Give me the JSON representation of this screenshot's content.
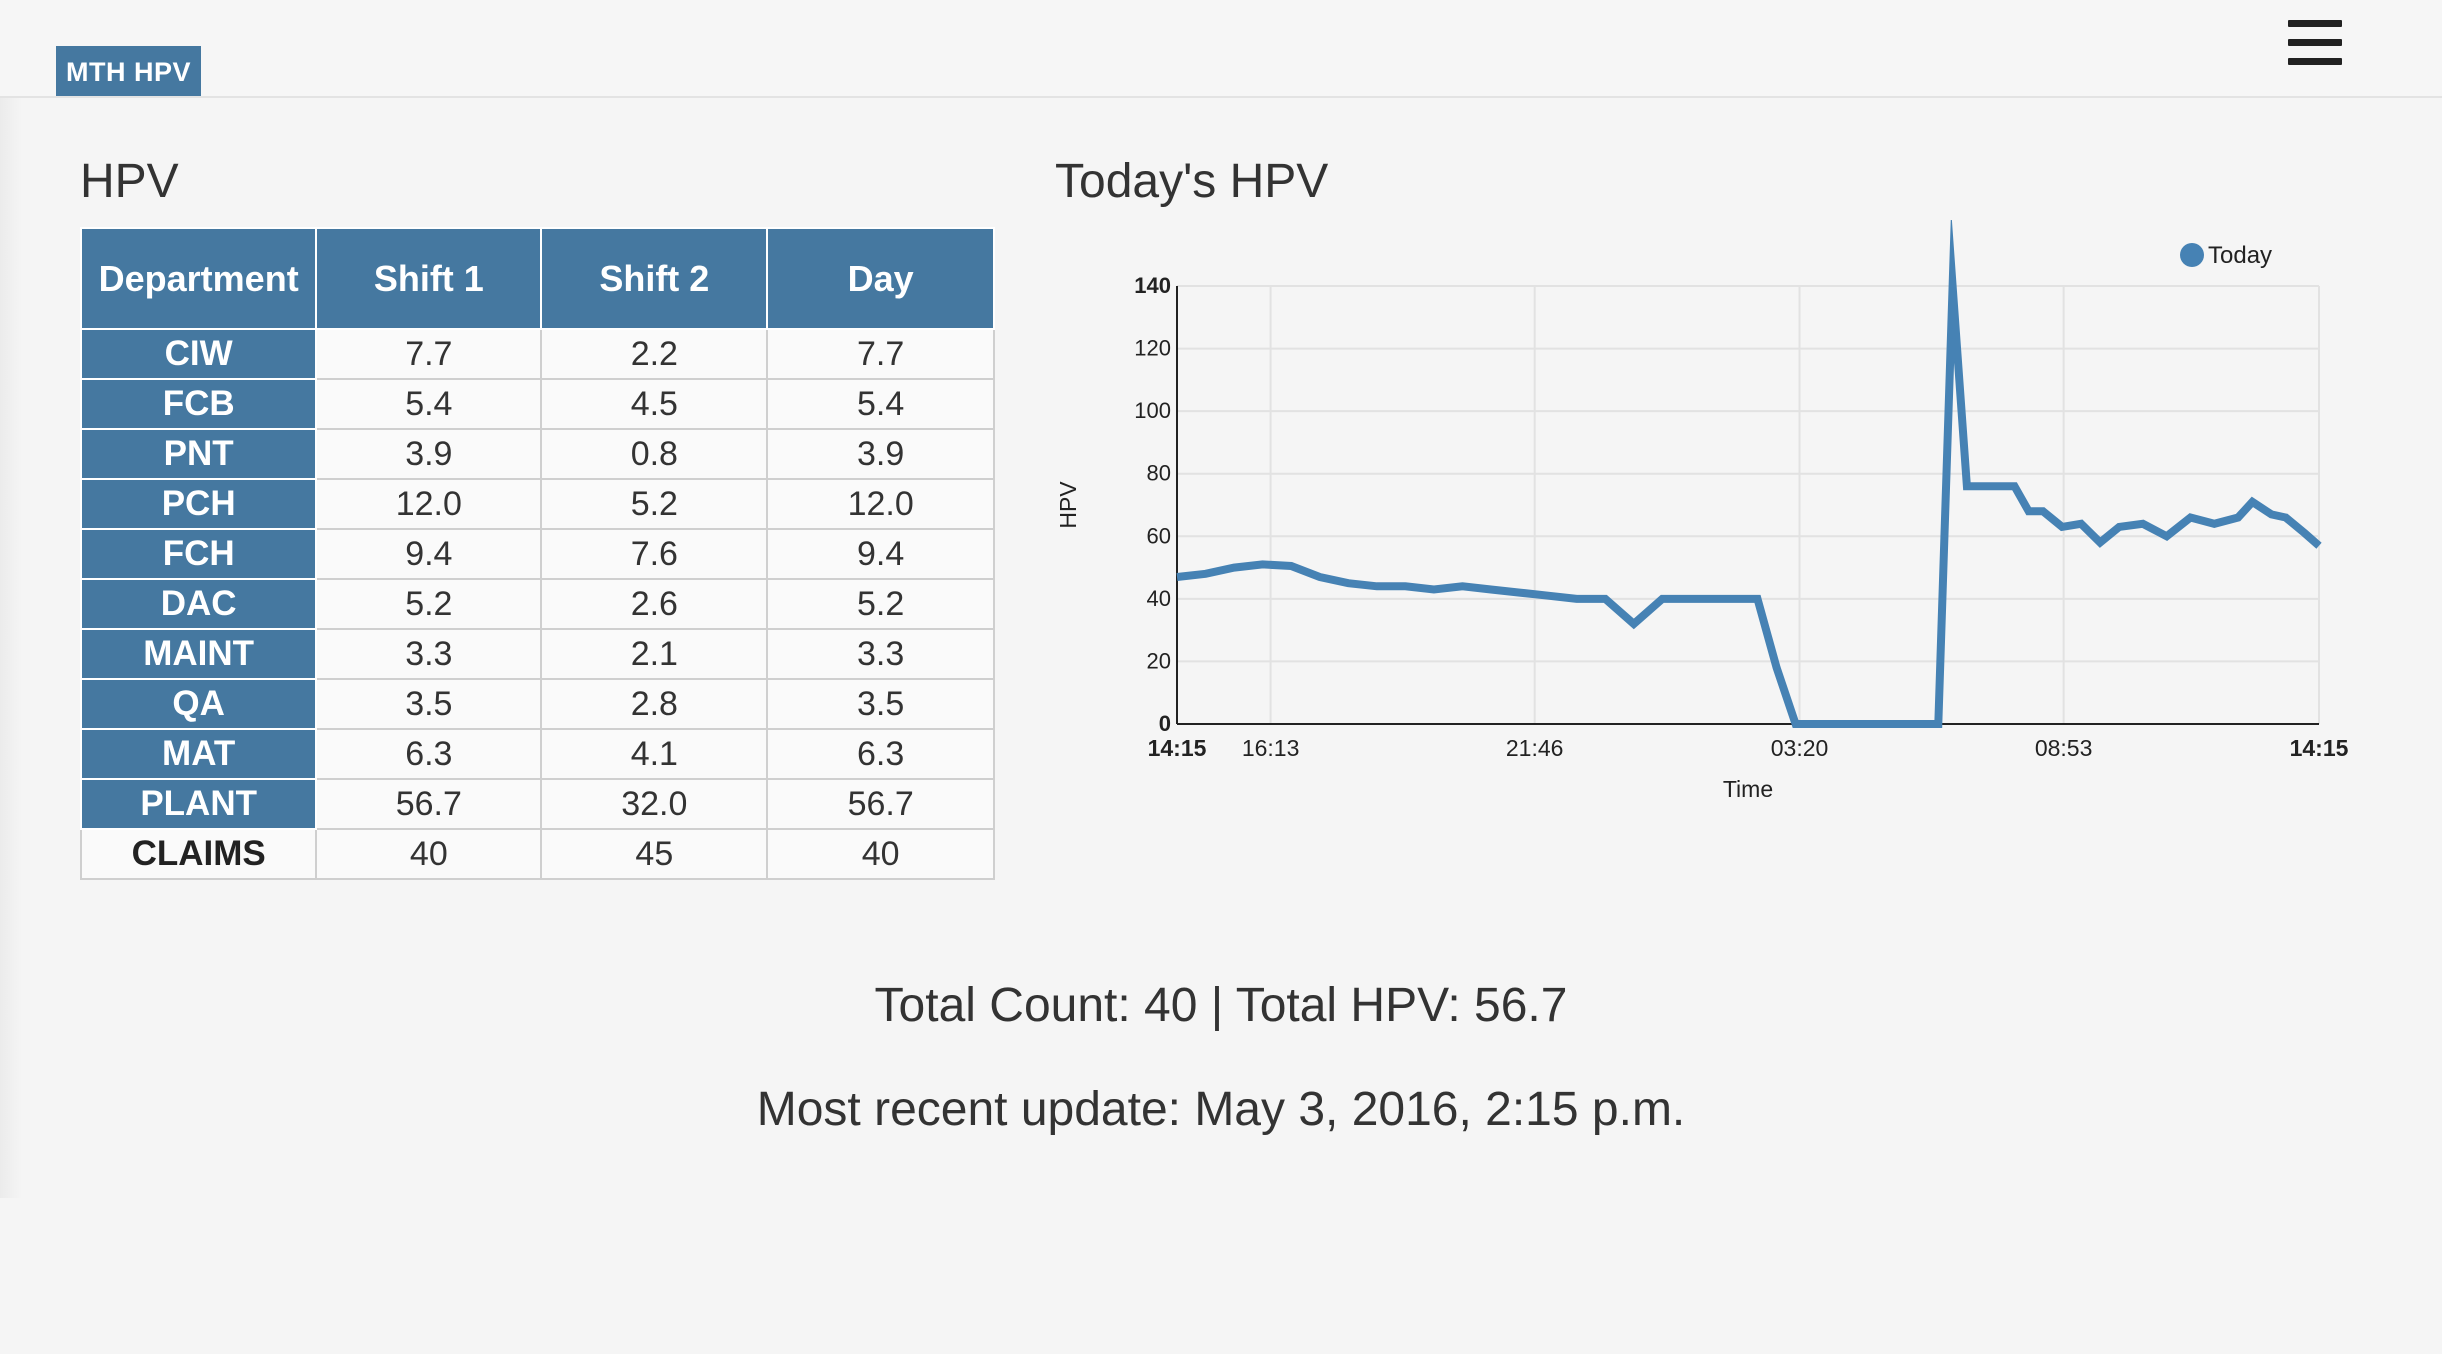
{
  "app": {
    "brand": "MTH HPV"
  },
  "table_title": "HPV",
  "chart_title": "Today's HPV",
  "table": {
    "headers": [
      "Department",
      "Shift 1",
      "Shift 2",
      "Day"
    ],
    "rows": [
      {
        "dept": "CIW",
        "shift1": "7.7",
        "shift2": "2.2",
        "day": "7.7"
      },
      {
        "dept": "FCB",
        "shift1": "5.4",
        "shift2": "4.5",
        "day": "5.4"
      },
      {
        "dept": "PNT",
        "shift1": "3.9",
        "shift2": "0.8",
        "day": "3.9"
      },
      {
        "dept": "PCH",
        "shift1": "12.0",
        "shift2": "5.2",
        "day": "12.0"
      },
      {
        "dept": "FCH",
        "shift1": "9.4",
        "shift2": "7.6",
        "day": "9.4"
      },
      {
        "dept": "DAC",
        "shift1": "5.2",
        "shift2": "2.6",
        "day": "5.2"
      },
      {
        "dept": "MAINT",
        "shift1": "3.3",
        "shift2": "2.1",
        "day": "3.3"
      },
      {
        "dept": "QA",
        "shift1": "3.5",
        "shift2": "2.8",
        "day": "3.5"
      },
      {
        "dept": "MAT",
        "shift1": "6.3",
        "shift2": "4.1",
        "day": "6.3"
      },
      {
        "dept": "PLANT",
        "shift1": "56.7",
        "shift2": "32.0",
        "day": "56.7"
      },
      {
        "dept": "CLAIMS",
        "shift1": "40",
        "shift2": "45",
        "day": "40"
      }
    ]
  },
  "summary": {
    "totals": "Total Count: 40 | Total HPV: 56.7",
    "updated": "Most recent update: May 3, 2016, 2:15 p.m."
  },
  "colors": {
    "accent": "#4578a0",
    "line": "#4682b4"
  },
  "icons": {
    "menu": "hamburger-icon"
  },
  "chart_data": {
    "type": "line",
    "title": "Today's HPV",
    "xlabel": "Time",
    "ylabel": "HPV",
    "ylim": [
      0,
      140
    ],
    "yticks": [
      0,
      20,
      40,
      60,
      80,
      100,
      120,
      140
    ],
    "xlim": [
      0,
      24
    ],
    "xticks": [
      {
        "t": 0,
        "label": "14:15",
        "bold": true
      },
      {
        "t": 1.967,
        "label": "16:13",
        "bold": false
      },
      {
        "t": 7.517,
        "label": "21:46",
        "bold": false
      },
      {
        "t": 13.083,
        "label": "03:20",
        "bold": false
      },
      {
        "t": 18.633,
        "label": "08:53",
        "bold": false
      },
      {
        "t": 24,
        "label": "14:15",
        "bold": true
      }
    ],
    "grid": true,
    "legend_position": "top-right",
    "series": [
      {
        "name": "Today",
        "x": [
          0,
          0.6,
          1.2,
          1.8,
          2.4,
          3.0,
          3.6,
          4.2,
          4.8,
          5.4,
          6.0,
          6.6,
          7.2,
          7.8,
          8.4,
          9.0,
          9.6,
          10.2,
          10.6,
          11.0,
          11.6,
          12.2,
          12.6,
          13.0,
          13.5,
          14.0,
          14.5,
          15.0,
          16.0,
          16.3,
          16.6,
          17.0,
          17.6,
          17.9,
          18.2,
          18.6,
          19.0,
          19.4,
          19.8,
          20.3,
          20.8,
          21.3,
          21.8,
          22.3,
          22.6,
          23.0,
          23.3,
          23.7,
          24.0
        ],
        "y": [
          47,
          48,
          50,
          51,
          50.5,
          47,
          45,
          44,
          44,
          43,
          44,
          43,
          42,
          41,
          40,
          40,
          32,
          40,
          40,
          40,
          40,
          40,
          18,
          0,
          0,
          0,
          0,
          0,
          0,
          140,
          76,
          76,
          76,
          68,
          68,
          63,
          64,
          58,
          63,
          64,
          60,
          66,
          64,
          66,
          71,
          67,
          66,
          61,
          57
        ]
      }
    ]
  }
}
